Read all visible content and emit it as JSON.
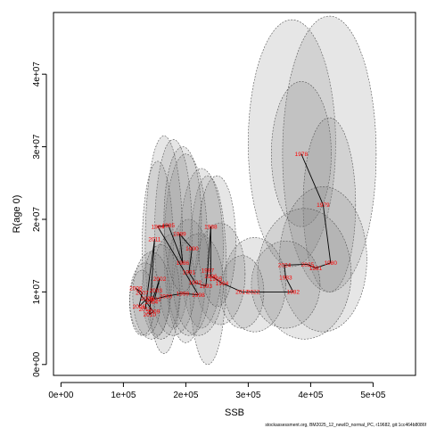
{
  "chart_data": {
    "type": "scatter",
    "title": "",
    "xlabel": "SSB",
    "ylabel": "R(age 0)",
    "xlim": [
      -12000,
      568000
    ],
    "ylim": [
      -1500000,
      48500000
    ],
    "x_ticks": [
      {
        "value": 0,
        "label": "0e+00"
      },
      {
        "value": 100000,
        "label": "1e+05"
      },
      {
        "value": 200000,
        "label": "2e+05"
      },
      {
        "value": 300000,
        "label": "3e+05"
      },
      {
        "value": 400000,
        "label": "4e+05"
      },
      {
        "value": 500000,
        "label": "5e+05"
      }
    ],
    "y_ticks": [
      {
        "value": 0,
        "label": "0e+00"
      },
      {
        "value": 10000000,
        "label": "1e+07"
      },
      {
        "value": 20000000,
        "label": "2e+07"
      },
      {
        "value": 30000000,
        "label": "3e+07"
      },
      {
        "value": 40000000,
        "label": "4e+07"
      }
    ],
    "point_color": "#ff0000",
    "ellipse_fill": "#808080",
    "connector_color": "#000000",
    "points": [
      {
        "year": "1978",
        "x": 385000,
        "y": 29000000
      },
      {
        "year": "1979",
        "x": 420000,
        "y": 22000000
      },
      {
        "year": "1980",
        "x": 432000,
        "y": 14000000
      },
      {
        "year": "1981",
        "x": 408000,
        "y": 13300000
      },
      {
        "year": "2025",
        "x": 395000,
        "y": 13800000
      },
      {
        "year": "2024",
        "x": 358000,
        "y": 13700000
      },
      {
        "year": "1983",
        "x": 360000,
        "y": 12000000
      },
      {
        "year": "1982",
        "x": 372000,
        "y": 10000000
      },
      {
        "year": "2022",
        "x": 308000,
        "y": 10000000
      },
      {
        "year": "2017",
        "x": 290000,
        "y": 10000000
      },
      {
        "year": "1994",
        "x": 258000,
        "y": 11200000
      },
      {
        "year": "1995",
        "x": 248000,
        "y": 11800000
      },
      {
        "year": "1996",
        "x": 240000,
        "y": 12200000
      },
      {
        "year": "1988",
        "x": 240000,
        "y": 19000000
      },
      {
        "year": "1987",
        "x": 235000,
        "y": 13000000
      },
      {
        "year": "1993",
        "x": 232000,
        "y": 10800000
      },
      {
        "year": "1992",
        "x": 215000,
        "y": 11300000
      },
      {
        "year": "1991",
        "x": 205000,
        "y": 12700000
      },
      {
        "year": "1990",
        "x": 210000,
        "y": 16000000
      },
      {
        "year": "1989",
        "x": 190000,
        "y": 18000000
      },
      {
        "year": "1986",
        "x": 195000,
        "y": 14000000
      },
      {
        "year": "1985",
        "x": 172000,
        "y": 19200000
      },
      {
        "year": "1984",
        "x": 155000,
        "y": 19000000
      },
      {
        "year": "1998",
        "x": 220000,
        "y": 9600000
      },
      {
        "year": "1999",
        "x": 195000,
        "y": 9800000
      },
      {
        "year": "2000",
        "x": 168000,
        "y": 9400000
      },
      {
        "year": "2001",
        "x": 150000,
        "y": 9000000
      },
      {
        "year": "2002",
        "x": 158000,
        "y": 11800000
      },
      {
        "year": "2003",
        "x": 152000,
        "y": 10200000
      },
      {
        "year": "2004",
        "x": 145000,
        "y": 8600000
      },
      {
        "year": "2005",
        "x": 138000,
        "y": 9100000
      },
      {
        "year": "2006",
        "x": 125000,
        "y": 8000000
      },
      {
        "year": "2007",
        "x": 130000,
        "y": 9900000
      },
      {
        "year": "2008",
        "x": 120000,
        "y": 10500000
      },
      {
        "year": "2009",
        "x": 148000,
        "y": 7300000
      },
      {
        "year": "2010",
        "x": 142000,
        "y": 6900000
      },
      {
        "year": "2011",
        "x": 150000,
        "y": 17300000
      },
      {
        "year": "2012",
        "x": 135000,
        "y": 7600000
      }
    ],
    "ellipses": [
      {
        "cx": 370000,
        "cy": 30500000,
        "rx": 70000,
        "ry": 17000000
      },
      {
        "cx": 430000,
        "cy": 29000000,
        "rx": 75000,
        "ry": 19000000
      },
      {
        "cx": 385000,
        "cy": 29000000,
        "rx": 48000,
        "ry": 10000000
      },
      {
        "cx": 430000,
        "cy": 22000000,
        "rx": 42000,
        "ry": 12000000
      },
      {
        "cx": 420000,
        "cy": 14500000,
        "rx": 70000,
        "ry": 10000000
      },
      {
        "cx": 390000,
        "cy": 12500000,
        "rx": 75000,
        "ry": 9000000
      },
      {
        "cx": 360000,
        "cy": 11000000,
        "rx": 55000,
        "ry": 6000000
      },
      {
        "cx": 310000,
        "cy": 11000000,
        "rx": 50000,
        "ry": 6500000
      },
      {
        "cx": 290000,
        "cy": 10000000,
        "rx": 35000,
        "ry": 5000000
      },
      {
        "cx": 255000,
        "cy": 12500000,
        "rx": 40000,
        "ry": 7000000
      },
      {
        "cx": 235000,
        "cy": 13000000,
        "rx": 30000,
        "ry": 13000000
      },
      {
        "cx": 225000,
        "cy": 16000000,
        "rx": 35000,
        "ry": 11000000
      },
      {
        "cx": 200000,
        "cy": 16000000,
        "rx": 35000,
        "ry": 13000000
      },
      {
        "cx": 180000,
        "cy": 18000000,
        "rx": 30000,
        "ry": 13000000
      },
      {
        "cx": 165000,
        "cy": 16500000,
        "rx": 30000,
        "ry": 15000000
      },
      {
        "cx": 155000,
        "cy": 16000000,
        "rx": 25000,
        "ry": 12000000
      },
      {
        "cx": 205000,
        "cy": 12000000,
        "rx": 35000,
        "ry": 8000000
      },
      {
        "cx": 220000,
        "cy": 11000000,
        "rx": 40000,
        "ry": 7000000
      },
      {
        "cx": 180000,
        "cy": 11000000,
        "rx": 35000,
        "ry": 7000000
      },
      {
        "cx": 160000,
        "cy": 10000000,
        "rx": 30000,
        "ry": 6500000
      },
      {
        "cx": 145000,
        "cy": 9500000,
        "rx": 30000,
        "ry": 6000000
      },
      {
        "cx": 135000,
        "cy": 9000000,
        "rx": 25000,
        "ry": 5000000
      },
      {
        "cx": 130000,
        "cy": 8500000,
        "rx": 20000,
        "ry": 4500000
      },
      {
        "cx": 250000,
        "cy": 17000000,
        "rx": 30000,
        "ry": 9000000
      },
      {
        "cx": 195000,
        "cy": 20000000,
        "rx": 30000,
        "ry": 10000000
      }
    ],
    "footnote": "stockassessment.org, BM2025_12_newID_normal_PC, r19682, git:1cc464b8086f"
  }
}
